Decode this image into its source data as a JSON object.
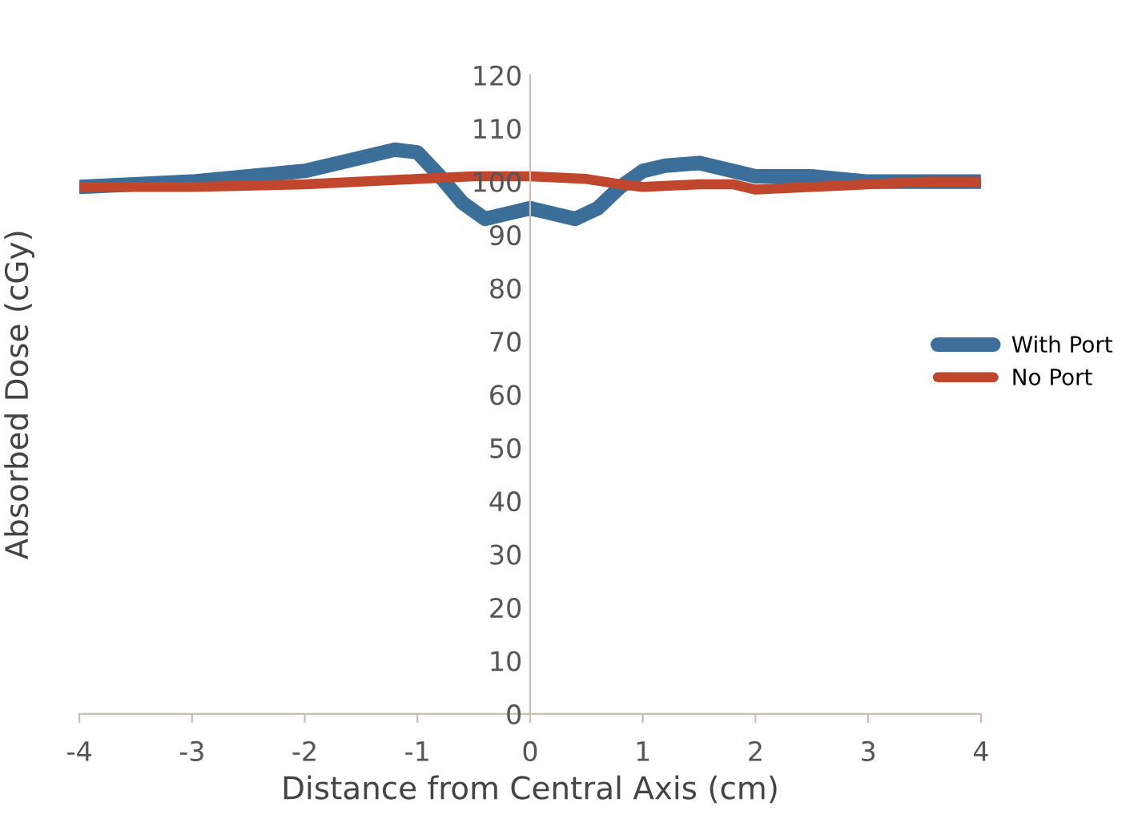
{
  "chart_data": {
    "type": "line",
    "xlabel": "Distance from Central Axis (cm)",
    "ylabel": "Absorbed Dose (cGy)",
    "xlim": [
      -4,
      4
    ],
    "ylim": [
      0,
      120
    ],
    "xticks": [
      -4,
      -3,
      -2,
      -1,
      0,
      1,
      2,
      3,
      4
    ],
    "yticks": [
      0,
      10,
      20,
      30,
      40,
      50,
      60,
      70,
      80,
      90,
      100,
      110,
      120
    ],
    "grid": false,
    "legend": "right",
    "marker": "none",
    "line_style": "solid",
    "series": [
      {
        "name": "With Port",
        "color": "#3b6e98",
        "x": [
          -4,
          -3,
          -2.5,
          -2,
          -1.5,
          -1.2,
          -1,
          -0.8,
          -0.6,
          -0.4,
          -0.2,
          0,
          0.2,
          0.4,
          0.6,
          0.8,
          1,
          1.2,
          1.5,
          1.8,
          2,
          2.5,
          3,
          3.5,
          4
        ],
        "values": [
          99,
          100,
          101,
          102,
          104.5,
          106,
          105.5,
          101,
          96,
          93,
          94,
          95,
          94,
          93,
          95,
          99,
          102,
          103,
          103.5,
          102,
          101,
          101,
          100,
          100,
          100
        ]
      },
      {
        "name": "No Port",
        "color": "#c0472e",
        "x": [
          -4,
          -3,
          -2,
          -1,
          -0.5,
          0,
          0.5,
          0.8,
          1,
          1.5,
          1.8,
          2,
          2.5,
          3,
          3.5,
          4
        ],
        "values": [
          99,
          99,
          99.5,
          100.5,
          101,
          101,
          100.5,
          99.5,
          99,
          99.5,
          99.5,
          98.5,
          99,
          99.5,
          100,
          100
        ]
      }
    ]
  }
}
